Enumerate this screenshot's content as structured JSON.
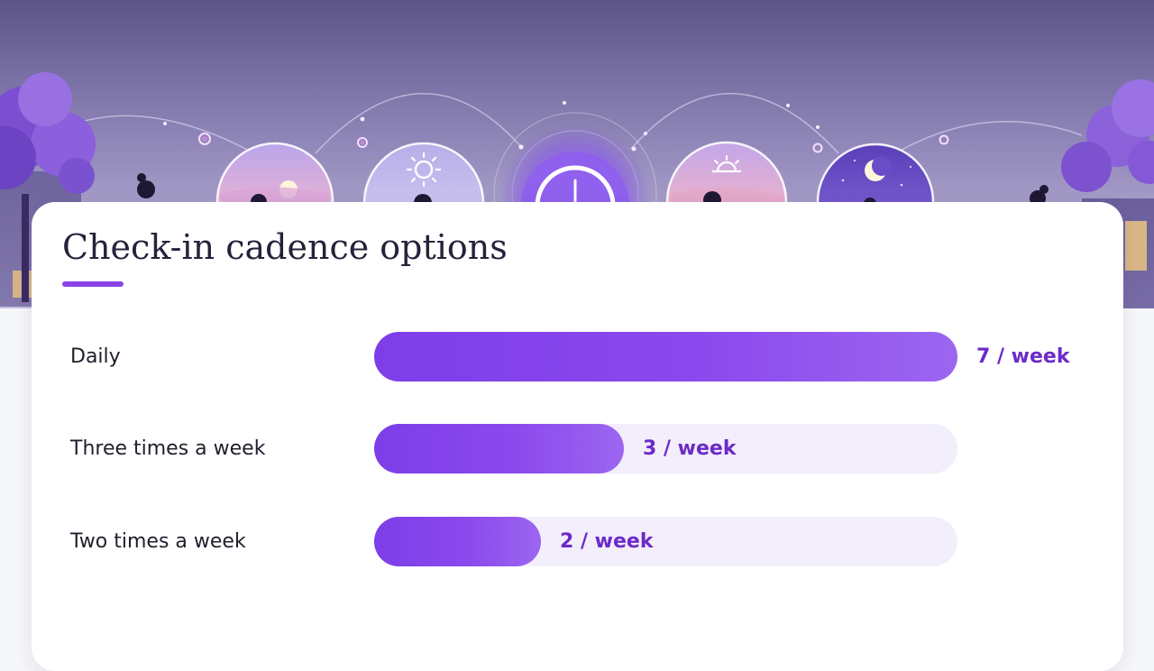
{
  "chart_data": {
    "type": "bar",
    "orientation": "horizontal",
    "title": "Check-in cadence options",
    "categories": [
      "Daily",
      "Three times a week",
      "Two times a week"
    ],
    "values": [
      7,
      3,
      2
    ],
    "value_labels": [
      "7 / week",
      "3 / week",
      "2 / week"
    ],
    "unit": "/ week",
    "xlim": [
      0,
      7
    ],
    "grid": false,
    "legend": "none"
  },
  "colors": {
    "accent": "#8a44e6",
    "bar_start": "#7d3ee8",
    "bar_end": "#9c66f0",
    "track": "#f3eefb",
    "value_text": "#6c2ac8",
    "title_text": "#23233b"
  },
  "hero": {
    "icons": [
      "sunrise-icon",
      "sun-icon",
      "clock-icon",
      "sunset-icon",
      "moon-icon"
    ]
  }
}
